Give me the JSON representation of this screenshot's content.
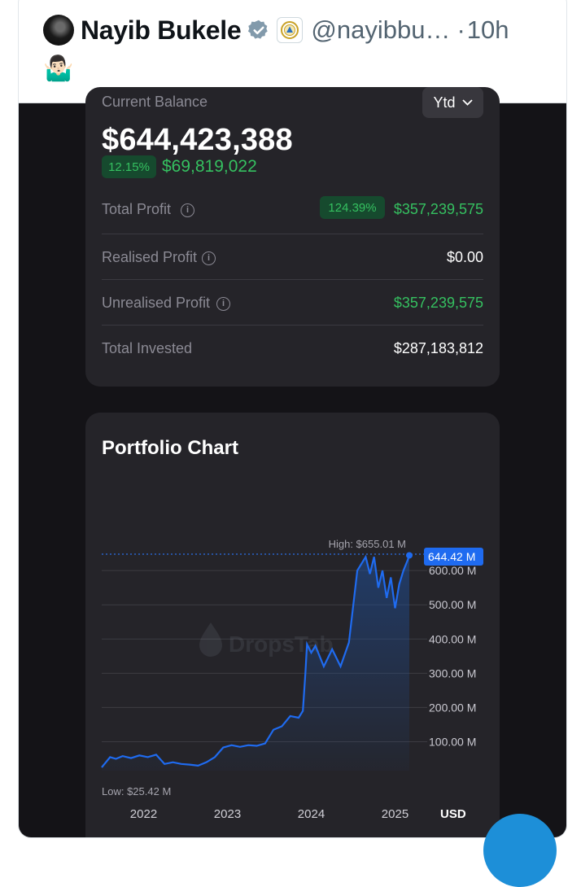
{
  "tweet": {
    "author_name": "Nayib Bukele",
    "handle": "@nayibbu…",
    "separator": "·",
    "time": "10h",
    "emoji": "🤷🏻‍♂️",
    "icons": [
      "verified-badge-icon",
      "el-salvador-flag-icon",
      "avatar"
    ]
  },
  "balance": {
    "label": "Current Balance",
    "period": "Ytd",
    "amount": "$644,423,388",
    "change_pct": "12.15%",
    "change_value": "$69,819,022",
    "rows": [
      {
        "label": "Total Profit",
        "pct": "124.39%",
        "value": "$357,239,575"
      },
      {
        "label": "Realised Profit",
        "value": "$0.00"
      },
      {
        "label": "Unrealised Profit",
        "value": "$357,239,575"
      },
      {
        "label": "Total Invested",
        "value": "$287,183,812"
      }
    ]
  },
  "chart": {
    "title": "Portfolio Chart",
    "high_label": "High: $655.01 M",
    "low_label": "Low: $25.42 M",
    "current_label": "644.42 M",
    "watermark": "DropsTab",
    "currency": "USD",
    "colors": {
      "line": "#1f6bf0",
      "positive": "#35c060",
      "panel": "#252429"
    }
  },
  "chart_data": {
    "type": "area",
    "title": "Portfolio Chart",
    "yunit": "M",
    "y_ticks": [
      "100.00 M",
      "200.00 M",
      "300.00 M",
      "400.00 M",
      "500.00 M",
      "600.00 M"
    ],
    "x_ticks": [
      "2022",
      "2023",
      "2024",
      "2025"
    ],
    "ylim": [
      25,
      655
    ],
    "high": 655.01,
    "low": 25.42,
    "last": 644.42,
    "x": [
      2021.55,
      2021.65,
      2021.72,
      2021.8,
      2021.9,
      2022.0,
      2022.1,
      2022.2,
      2022.3,
      2022.4,
      2022.5,
      2022.6,
      2022.7,
      2022.8,
      2022.9,
      2023.0,
      2023.1,
      2023.2,
      2023.3,
      2023.4,
      2023.5,
      2023.6,
      2023.7,
      2023.8,
      2023.9,
      2023.95,
      2023.98,
      2024.0,
      2024.05,
      2024.1,
      2024.2,
      2024.3,
      2024.4,
      2024.5,
      2024.6,
      2024.7,
      2024.75,
      2024.8,
      2024.85,
      2024.9,
      2024.95,
      2025.0,
      2025.05,
      2025.1,
      2025.15,
      2025.2,
      2025.22
    ],
    "values": [
      25,
      55,
      50,
      58,
      52,
      60,
      55,
      62,
      35,
      40,
      35,
      33,
      30,
      40,
      55,
      83,
      90,
      85,
      90,
      88,
      95,
      135,
      145,
      175,
      170,
      190,
      300,
      385,
      360,
      380,
      320,
      370,
      320,
      390,
      600,
      640,
      590,
      640,
      550,
      600,
      520,
      580,
      490,
      560,
      600,
      630,
      644
    ]
  },
  "layout_note": ""
}
